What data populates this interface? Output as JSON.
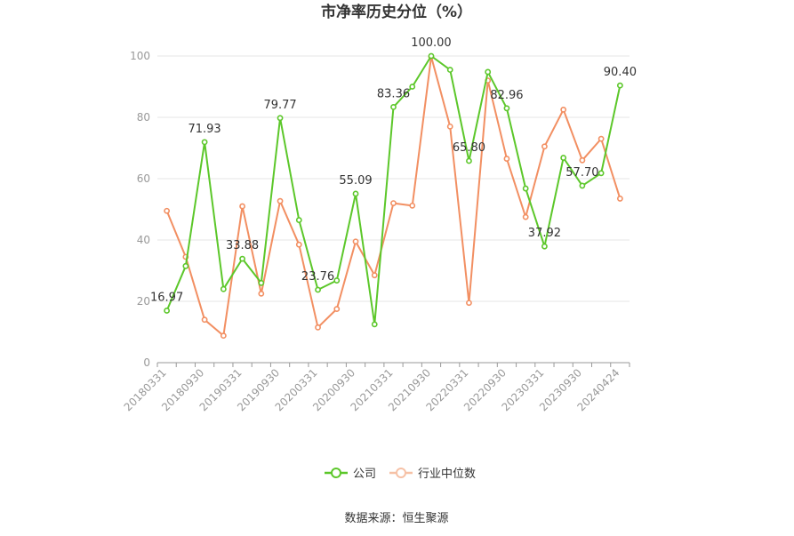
{
  "chart_data": {
    "type": "line",
    "title": "市净率历史分位（%）",
    "xlabel": "",
    "ylabel": "",
    "ylim": [
      0,
      100
    ],
    "yticks": [
      0,
      20,
      40,
      60,
      80,
      100
    ],
    "grid": true,
    "legend_position": "bottom",
    "x": [
      "20180331",
      "20180630",
      "20180930",
      "20181231",
      "20190331",
      "20190630",
      "20190930",
      "20191231",
      "20200331",
      "20200630",
      "20200930",
      "20201231",
      "20210331",
      "20210630",
      "20210930",
      "20211231",
      "20220331",
      "20220630",
      "20220930",
      "20221231",
      "20230331",
      "20230630",
      "20230930",
      "20231231",
      "20240424"
    ],
    "x_tick_labels": [
      "20180331",
      "20180930",
      "20190331",
      "20190930",
      "20200331",
      "20200930",
      "20210331",
      "20210930",
      "20220331",
      "20220930",
      "20230331",
      "20230930",
      "20240424"
    ],
    "series": [
      {
        "name": "公司",
        "color": "#5cc72a",
        "values": [
          16.97,
          31.5,
          71.93,
          24.0,
          33.88,
          26.0,
          79.77,
          46.5,
          23.76,
          26.8,
          55.09,
          12.5,
          83.36,
          90.0,
          100.0,
          95.5,
          65.8,
          94.8,
          82.96,
          56.8,
          37.92,
          66.8,
          57.7,
          61.8,
          90.4
        ],
        "labels": [
          "16.97",
          "",
          "71.93",
          "",
          "33.88",
          "",
          "79.77",
          "",
          "23.76",
          "",
          "55.09",
          "",
          "83.36",
          "",
          "100.00",
          "",
          "65.80",
          "",
          "82.96",
          "",
          "37.92",
          "",
          "57.70",
          "",
          "90.40"
        ]
      },
      {
        "name": "行业中位数",
        "color": "#f28f62",
        "values": [
          49.5,
          34.5,
          14.0,
          8.8,
          51.0,
          22.5,
          52.7,
          38.5,
          11.5,
          17.5,
          39.5,
          28.5,
          52.0,
          51.2,
          99.8,
          77.0,
          19.5,
          92.0,
          66.5,
          47.5,
          70.5,
          82.5,
          66.0,
          73.0,
          53.5
        ]
      }
    ]
  },
  "source_text": "数据来源：恒生聚源"
}
